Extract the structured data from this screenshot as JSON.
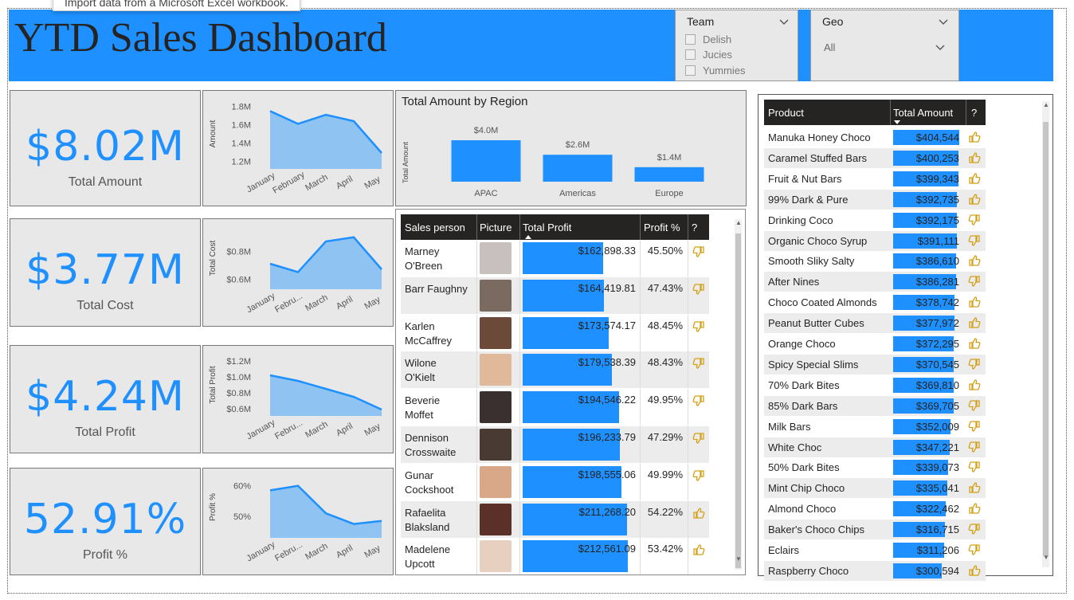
{
  "tooltip": "Import data from a Microsoft Excel workbook.",
  "title": "YTD Sales Dashboard",
  "slicers": {
    "team": {
      "label": "Team",
      "options": [
        "Delish",
        "Jucies",
        "Yummies"
      ]
    },
    "geo": {
      "label": "Geo",
      "selected": "All"
    }
  },
  "cards": [
    {
      "value": "$8.02M",
      "label": "Total Amount"
    },
    {
      "value": "$3.77M",
      "label": "Total Cost"
    },
    {
      "value": "$4.24M",
      "label": "Total Profit"
    },
    {
      "value": "52.91%",
      "label": "Profit %"
    }
  ],
  "chart_data": [
    {
      "type": "area",
      "ylabel": "Amount",
      "x": [
        "January",
        "February",
        "March",
        "April",
        "May"
      ],
      "yticks": [
        "1.8M",
        "1.6M",
        "1.4M",
        "1.2M"
      ],
      "ylim": [
        1.15,
        1.85
      ],
      "values": [
        1.75,
        1.61,
        1.71,
        1.64,
        1.29
      ]
    },
    {
      "type": "area",
      "ylabel": "Total Cost",
      "x": [
        "January",
        "Febru...",
        "March",
        "April",
        "May"
      ],
      "yticks": [
        "$0.8M",
        "$0.6M"
      ],
      "ylim": [
        0.55,
        0.95
      ],
      "values": [
        0.71,
        0.65,
        0.87,
        0.9,
        0.67
      ]
    },
    {
      "type": "area",
      "ylabel": "Total Profit",
      "x": [
        "January",
        "Febru...",
        "March",
        "April",
        "May"
      ],
      "yticks": [
        "$1.2M",
        "$1.0M",
        "$0.8M",
        "$0.6M"
      ],
      "ylim": [
        0.55,
        1.25
      ],
      "values": [
        1.02,
        0.95,
        0.85,
        0.75,
        0.59
      ]
    },
    {
      "type": "area",
      "ylabel": "Profit %",
      "x": [
        "January",
        "Febru...",
        "March",
        "April",
        "May"
      ],
      "yticks": [
        "60%",
        "50%"
      ],
      "ylim": [
        44,
        62
      ],
      "values": [
        58.5,
        60,
        51,
        47.5,
        48.5
      ]
    },
    {
      "type": "bar",
      "title": "Total Amount by Region",
      "ylabel": "Total Amount",
      "categories": [
        "APAC",
        "Americas",
        "Europe"
      ],
      "values": [
        4.0,
        2.6,
        1.4
      ],
      "labels": [
        "$4.0M",
        "$2.6M",
        "$1.4M"
      ]
    }
  ],
  "sales_table": {
    "headers": [
      "Sales person",
      "Picture",
      "Total Profit",
      "Profit %",
      "?"
    ],
    "max_profit": 225000,
    "rows": [
      {
        "name1": "Marney",
        "name2": "O'Breen",
        "profit": "$162,898.33",
        "pv": 162898,
        "pct": "45.50%",
        "thumb": "down",
        "pic": "#c8c0bc"
      },
      {
        "name1": "Barr Faughny",
        "name2": "",
        "profit": "$164,419.81",
        "pv": 164420,
        "pct": "47.43%",
        "thumb": "down",
        "pic": "#7a6a60"
      },
      {
        "name1": "Karlen",
        "name2": "McCaffrey",
        "profit": "$173,574.17",
        "pv": 173574,
        "pct": "48.45%",
        "thumb": "down",
        "pic": "#6b4a3a"
      },
      {
        "name1": "Wilone",
        "name2": "O'Kielt",
        "profit": "$179,538.39",
        "pv": 179538,
        "pct": "48.43%",
        "thumb": "down",
        "pic": "#e0b89a"
      },
      {
        "name1": "Beverie",
        "name2": "Moffet",
        "profit": "$194,546.22",
        "pv": 194546,
        "pct": "49.95%",
        "thumb": "down",
        "pic": "#3a3030"
      },
      {
        "name1": "Dennison",
        "name2": "Crosswaite",
        "profit": "$196,233.79",
        "pv": 196234,
        "pct": "47.29%",
        "thumb": "down",
        "pic": "#4a3a34"
      },
      {
        "name1": "Gunar",
        "name2": "Cockshoot",
        "profit": "$198,555.06",
        "pv": 198555,
        "pct": "49.99%",
        "thumb": "down",
        "pic": "#d8a888"
      },
      {
        "name1": "Rafaelita",
        "name2": "Blaksland",
        "profit": "$211,268.20",
        "pv": 211268,
        "pct": "54.22%",
        "thumb": "up",
        "pic": "#5a3028"
      },
      {
        "name1": "Madelene",
        "name2": "Upcott",
        "profit": "$212,561.09",
        "pv": 212561,
        "pct": "53.42%",
        "thumb": "up",
        "pic": "#e8d0c0"
      }
    ]
  },
  "product_table": {
    "headers": [
      "Product",
      "Total Amount",
      "?"
    ],
    "max_amount": 450000,
    "rows": [
      {
        "name": "Manuka Honey Choco",
        "amt": "$404,544",
        "v": 404544,
        "thumb": "up"
      },
      {
        "name": "Caramel Stuffed Bars",
        "amt": "$400,253",
        "v": 400253,
        "thumb": "up"
      },
      {
        "name": "Fruit & Nut Bars",
        "amt": "$399,343",
        "v": 399343,
        "thumb": "up"
      },
      {
        "name": "99% Dark & Pure",
        "amt": "$392,735",
        "v": 392735,
        "thumb": "up"
      },
      {
        "name": "Drinking Coco",
        "amt": "$392,175",
        "v": 392175,
        "thumb": "down"
      },
      {
        "name": "Organic Choco Syrup",
        "amt": "$391,111",
        "v": 391111,
        "thumb": "down"
      },
      {
        "name": "Smooth Sliky Salty",
        "amt": "$386,610",
        "v": 386610,
        "thumb": "up"
      },
      {
        "name": "After Nines",
        "amt": "$386,281",
        "v": 386281,
        "thumb": "down"
      },
      {
        "name": "Choco Coated Almonds",
        "amt": "$378,742",
        "v": 378742,
        "thumb": "up"
      },
      {
        "name": "Peanut Butter Cubes",
        "amt": "$377,972",
        "v": 377972,
        "thumb": "up"
      },
      {
        "name": "Orange Choco",
        "amt": "$372,295",
        "v": 372295,
        "thumb": "up"
      },
      {
        "name": "Spicy Special Slims",
        "amt": "$370,545",
        "v": 370545,
        "thumb": "down"
      },
      {
        "name": "70% Dark Bites",
        "amt": "$369,810",
        "v": 369810,
        "thumb": "up"
      },
      {
        "name": "85% Dark Bars",
        "amt": "$369,705",
        "v": 369705,
        "thumb": "down"
      },
      {
        "name": "Milk Bars",
        "amt": "$352,009",
        "v": 352009,
        "thumb": "down"
      },
      {
        "name": "White Choc",
        "amt": "$347,221",
        "v": 347221,
        "thumb": "down"
      },
      {
        "name": "50% Dark Bites",
        "amt": "$339,073",
        "v": 339073,
        "thumb": "down"
      },
      {
        "name": "Mint Chip Choco",
        "amt": "$335,041",
        "v": 335041,
        "thumb": "up"
      },
      {
        "name": "Almond Choco",
        "amt": "$322,462",
        "v": 322462,
        "thumb": "up"
      },
      {
        "name": "Baker's Choco Chips",
        "amt": "$316,715",
        "v": 316715,
        "thumb": "down"
      },
      {
        "name": "Eclairs",
        "amt": "$311,206",
        "v": 311206,
        "thumb": "down"
      },
      {
        "name": "Raspberry Choco",
        "amt": "$300,594",
        "v": 300594,
        "thumb": "up"
      }
    ]
  },
  "colors": {
    "accent": "#1e90ff",
    "panel": "#e8e8e8",
    "header": "#252423",
    "thumb": "#d4a017"
  }
}
